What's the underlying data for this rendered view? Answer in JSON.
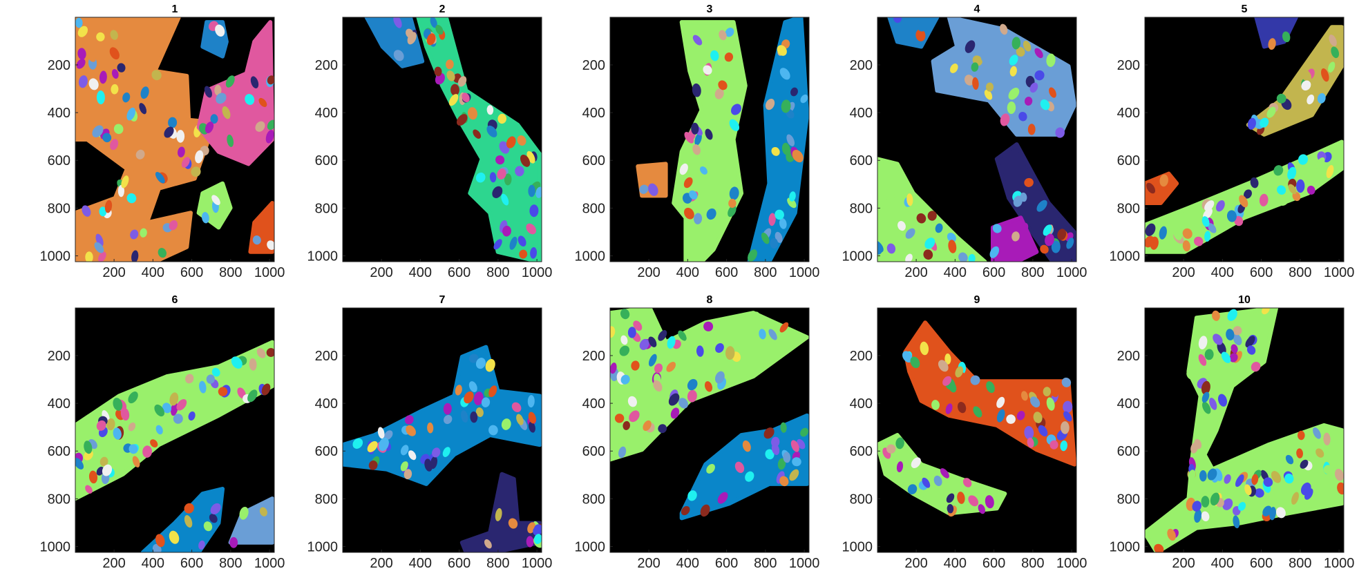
{
  "figure": {
    "panels": [
      {
        "title": "1",
        "bg": "#000000",
        "blobs": [
          {
            "color": "#E58A3F"
          },
          {
            "color": "#E0589F"
          },
          {
            "color": "#1E82C8"
          },
          {
            "color": "#99F06B"
          },
          {
            "color": "#E0521C"
          }
        ]
      },
      {
        "title": "2",
        "bg": "#000000",
        "blobs": [
          {
            "color": "#2DD68F"
          },
          {
            "color": "#1E82C8"
          }
        ]
      },
      {
        "title": "3",
        "bg": "#000000",
        "blobs": [
          {
            "color": "#99F06B"
          },
          {
            "color": "#0A86C9"
          },
          {
            "color": "#E58A3F"
          }
        ]
      },
      {
        "title": "4",
        "bg": "#000000",
        "blobs": [
          {
            "color": "#6A9ED6"
          },
          {
            "color": "#1E82C8"
          },
          {
            "color": "#99F06B"
          },
          {
            "color": "#2A2670"
          },
          {
            "color": "#A81BB8"
          }
        ]
      },
      {
        "title": "5",
        "bg": "#000000",
        "blobs": [
          {
            "color": "#C2B54E"
          },
          {
            "color": "#99F06B"
          },
          {
            "color": "#E0521C"
          },
          {
            "color": "#3338A8"
          }
        ]
      },
      {
        "title": "6",
        "bg": "#000000",
        "blobs": [
          {
            "color": "#99F06B"
          },
          {
            "color": "#0A86C9"
          },
          {
            "color": "#6A9ED6"
          }
        ]
      },
      {
        "title": "7",
        "bg": "#000000",
        "blobs": [
          {
            "color": "#0A86C9"
          },
          {
            "color": "#2A2670"
          }
        ]
      },
      {
        "title": "8",
        "bg": "#000000",
        "blobs": [
          {
            "color": "#99F06B"
          },
          {
            "color": "#0A86C9"
          }
        ]
      },
      {
        "title": "9",
        "bg": "#000000",
        "blobs": [
          {
            "color": "#E0521C"
          },
          {
            "color": "#99F06B"
          }
        ]
      },
      {
        "title": "10",
        "bg": "#000000",
        "blobs": [
          {
            "color": "#99F06B"
          }
        ]
      }
    ],
    "x_ticks": [
      "200",
      "400",
      "600",
      "800",
      "1000"
    ],
    "y_ticks": [
      "200",
      "400",
      "600",
      "800",
      "1000"
    ],
    "nucleus_palette": [
      "#2A2670",
      "#E0589F",
      "#1E82C8",
      "#F2E24A",
      "#E0521C",
      "#99F06B",
      "#A81BB8",
      "#4DB6F0",
      "#E58A3F",
      "#6A9ED6",
      "#C2B54E",
      "#1FF0F0",
      "#7D5CE6",
      "#D0A98C",
      "#36B05A",
      "#F0F0F0",
      "#8C2A1E",
      "#4A4AE8"
    ]
  }
}
